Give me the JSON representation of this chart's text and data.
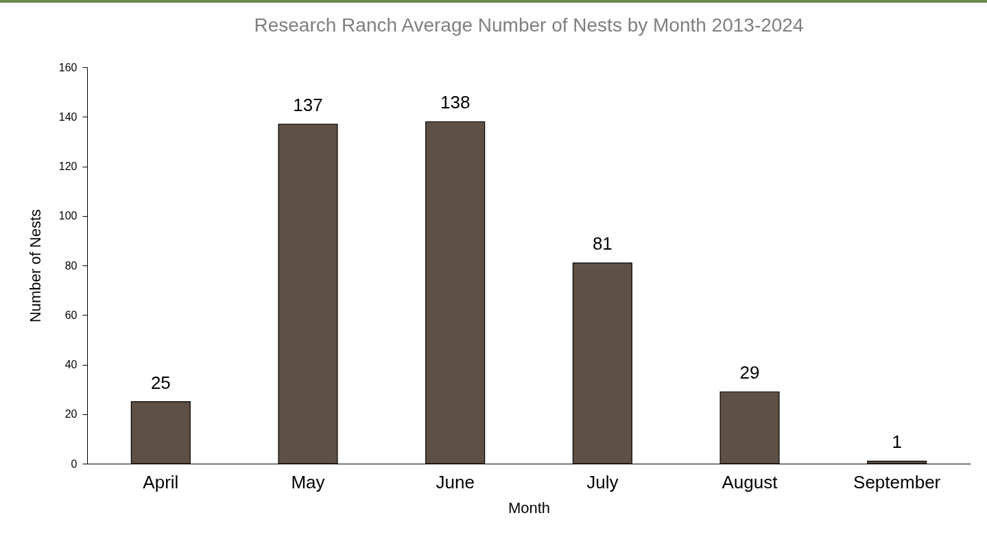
{
  "chart_data": {
    "type": "bar",
    "title": "Research Ranch Average Number of Nests by Month 2013-2024",
    "xlabel": "Month",
    "ylabel": "Number of Nests",
    "categories": [
      "April",
      "May",
      "June",
      "July",
      "August",
      "September"
    ],
    "values": [
      25,
      137,
      138,
      81,
      29,
      1
    ],
    "color": "#5f5045",
    "ylim": [
      0,
      160
    ],
    "yticks": [
      0,
      20,
      40,
      60,
      80,
      100,
      120,
      140,
      160
    ],
    "grid": false,
    "data_labels": true
  }
}
